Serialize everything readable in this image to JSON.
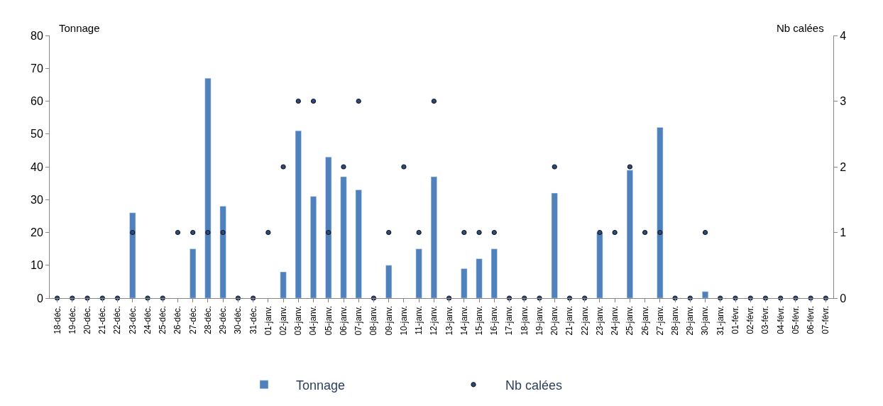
{
  "chart_data": {
    "type": "bar",
    "categories": [
      "18-déc.",
      "19-déc.",
      "20-déc.",
      "21-déc.",
      "22-déc.",
      "23-déc.",
      "24-déc.",
      "25-déc.",
      "26-déc.",
      "27-déc.",
      "28-déc.",
      "29-déc.",
      "30-déc.",
      "31-déc.",
      "01-janv.",
      "02-janv.",
      "03-janv.",
      "04-janv.",
      "05-janv.",
      "06-janv.",
      "07-janv.",
      "08-janv.",
      "09-janv.",
      "10-janv.",
      "11-janv.",
      "12-janv.",
      "13-janv.",
      "14-janv.",
      "15-janv.",
      "16-janv.",
      "17-janv.",
      "18-janv.",
      "19-janv.",
      "20-janv.",
      "21-janv.",
      "22-janv.",
      "23-janv.",
      "24-janv.",
      "25-janv.",
      "26-janv.",
      "27-janv.",
      "28-janv.",
      "29-janv.",
      "30-janv.",
      "31-janv.",
      "01-févr.",
      "02-févr.",
      "03-févr.",
      "04-févr.",
      "05-févr.",
      "06-févr.",
      "07-févr."
    ],
    "series": [
      {
        "name": "Tonnage",
        "color": "#4f81bd",
        "values": [
          null,
          null,
          null,
          null,
          null,
          26,
          null,
          null,
          null,
          15,
          67,
          28,
          null,
          null,
          null,
          8,
          51,
          31,
          43,
          37,
          33,
          null,
          10,
          null,
          15,
          37,
          null,
          9,
          12,
          15,
          null,
          null,
          null,
          32,
          null,
          null,
          20,
          null,
          39,
          null,
          52,
          null,
          null,
          2,
          null,
          null,
          null,
          null,
          null,
          null,
          null,
          null
        ]
      },
      {
        "name": "Nb calées",
        "type": "scatter",
        "axis": "y2",
        "color": "#2a4d78",
        "marker": "circle",
        "values": [
          0,
          0,
          0,
          0,
          0,
          1,
          0,
          0,
          1,
          1,
          1,
          1,
          0,
          0,
          1,
          2,
          3,
          3,
          1,
          2,
          3,
          0,
          1,
          2,
          1,
          3,
          0,
          1,
          1,
          1,
          0,
          0,
          0,
          2,
          0,
          0,
          1,
          1,
          2,
          1,
          1,
          0,
          0,
          1,
          0,
          0,
          0,
          0,
          0,
          0,
          0,
          0
        ]
      }
    ],
    "ylabel": "Tonnage",
    "y2label": "Nb calées",
    "ylim": [
      0,
      80
    ],
    "yticks": [
      0,
      10,
      20,
      30,
      40,
      50,
      60,
      70,
      80
    ],
    "y2lim": [
      0,
      4
    ],
    "y2ticks": [
      0,
      1,
      2,
      3,
      4
    ],
    "legend": "bottom"
  }
}
